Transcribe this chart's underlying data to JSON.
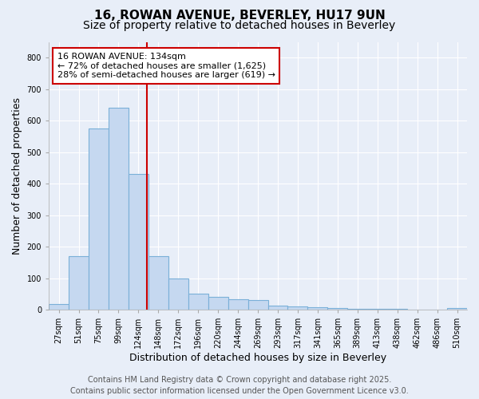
{
  "title1": "16, ROWAN AVENUE, BEVERLEY, HU17 9UN",
  "title2": "Size of property relative to detached houses in Beverley",
  "xlabel": "Distribution of detached houses by size in Beverley",
  "ylabel": "Number of detached properties",
  "categories": [
    "27sqm",
    "51sqm",
    "75sqm",
    "99sqm",
    "124sqm",
    "148sqm",
    "172sqm",
    "196sqm",
    "220sqm",
    "244sqm",
    "269sqm",
    "293sqm",
    "317sqm",
    "341sqm",
    "365sqm",
    "389sqm",
    "413sqm",
    "438sqm",
    "462sqm",
    "486sqm",
    "510sqm"
  ],
  "values": [
    18,
    170,
    575,
    640,
    430,
    170,
    100,
    52,
    40,
    32,
    30,
    12,
    9,
    7,
    5,
    3,
    2,
    2,
    1,
    1,
    5
  ],
  "bar_color": "#c5d8f0",
  "bar_edge_color": "#7ab0d8",
  "vline_color": "#cc0000",
  "annotation_text": "16 ROWAN AVENUE: 134sqm\n← 72% of detached houses are smaller (1,625)\n28% of semi-detached houses are larger (619) →",
  "annotation_box_color": "#ffffff",
  "annotation_box_edge_color": "#cc0000",
  "ylim": [
    0,
    850
  ],
  "yticks": [
    0,
    100,
    200,
    300,
    400,
    500,
    600,
    700,
    800
  ],
  "footer1": "Contains HM Land Registry data © Crown copyright and database right 2025.",
  "footer2": "Contains public sector information licensed under the Open Government Licence v3.0.",
  "background_color": "#e8eef8",
  "grid_color": "#ffffff",
  "title_fontsize": 11,
  "subtitle_fontsize": 10,
  "axis_label_fontsize": 9,
  "tick_fontsize": 7,
  "annotation_fontsize": 8,
  "footer_fontsize": 7
}
